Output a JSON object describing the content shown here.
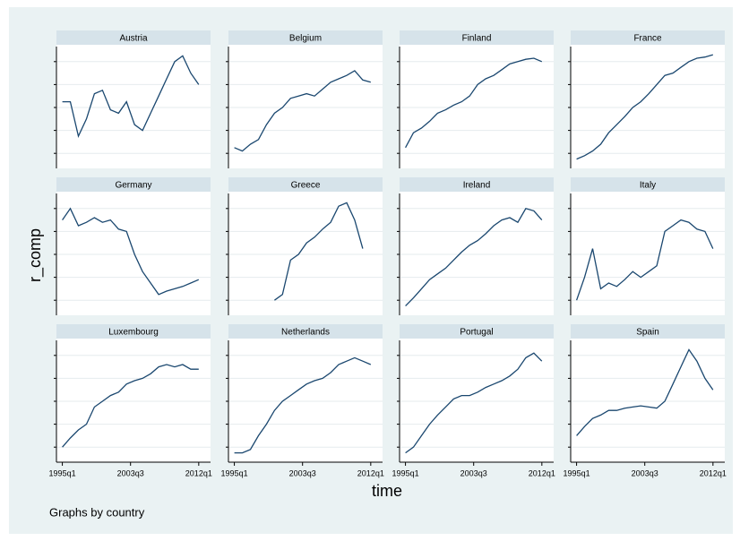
{
  "chart_data": {
    "type": "line",
    "ylabel": "r_comp",
    "xlabel": "time",
    "note": "Graphs by country",
    "x": [
      1995,
      1996,
      1997,
      1998,
      1999,
      2000,
      2001,
      2002,
      2003,
      2004,
      2005,
      2006,
      2007,
      2008,
      2009,
      2010,
      2011,
      2012
    ],
    "xlim": [
      1994.6,
      2012.8
    ],
    "xticks": [
      {
        "value": 1995,
        "label": "1995q1"
      },
      {
        "value": 2003.5,
        "label": "2003q3"
      },
      {
        "value": 2012,
        "label": "2012q1"
      }
    ],
    "ylim": [
      0,
      100
    ],
    "yticks": [
      10,
      30,
      50,
      70,
      90
    ],
    "grid": true,
    "series": [
      {
        "name": "Austria",
        "color": "#1a476f",
        "values": [
          55,
          55,
          25,
          40,
          62,
          65,
          48,
          45,
          55,
          35,
          30,
          45,
          60,
          75,
          90,
          95,
          80,
          70
        ]
      },
      {
        "name": "Belgium",
        "color": "#1a476f",
        "values": [
          15,
          12,
          18,
          22,
          35,
          45,
          50,
          58,
          60,
          62,
          60,
          66,
          72,
          75,
          78,
          82,
          74,
          72
        ]
      },
      {
        "name": "Finland",
        "color": "#1a476f",
        "values": [
          15,
          28,
          32,
          38,
          45,
          48,
          52,
          55,
          60,
          70,
          75,
          78,
          83,
          88,
          90,
          92,
          93,
          90
        ]
      },
      {
        "name": "France",
        "color": "#1a476f",
        "values": [
          5,
          8,
          12,
          18,
          28,
          35,
          42,
          50,
          55,
          62,
          70,
          78,
          80,
          85,
          90,
          93,
          94,
          96
        ]
      },
      {
        "name": "Germany",
        "color": "#1a476f",
        "values": [
          80,
          90,
          75,
          78,
          82,
          78,
          80,
          72,
          70,
          50,
          35,
          25,
          15,
          18,
          20,
          22,
          25,
          28
        ]
      },
      {
        "name": "Greece",
        "color": "#1a476f",
        "values": [
          null,
          null,
          null,
          null,
          null,
          10,
          15,
          45,
          50,
          60,
          65,
          72,
          78,
          92,
          95,
          80,
          55,
          null
        ]
      },
      {
        "name": "Ireland",
        "color": "#1a476f",
        "values": [
          5,
          12,
          20,
          28,
          33,
          38,
          45,
          52,
          58,
          62,
          68,
          75,
          80,
          82,
          78,
          90,
          88,
          80
        ]
      },
      {
        "name": "Italy",
        "color": "#1a476f",
        "values": [
          10,
          30,
          55,
          20,
          25,
          22,
          28,
          35,
          30,
          35,
          40,
          70,
          75,
          80,
          78,
          72,
          70,
          55
        ]
      },
      {
        "name": "Luxembourg",
        "color": "#1a476f",
        "values": [
          10,
          18,
          25,
          30,
          45,
          50,
          55,
          58,
          65,
          68,
          70,
          74,
          80,
          82,
          80,
          82,
          78,
          78
        ]
      },
      {
        "name": "Netherlands",
        "color": "#1a476f",
        "values": [
          5,
          5,
          8,
          20,
          30,
          42,
          50,
          55,
          60,
          65,
          68,
          70,
          75,
          82,
          85,
          88,
          85,
          82
        ]
      },
      {
        "name": "Portugal",
        "color": "#1a476f",
        "values": [
          5,
          10,
          20,
          30,
          38,
          45,
          52,
          55,
          55,
          58,
          62,
          65,
          68,
          72,
          78,
          88,
          92,
          85
        ]
      },
      {
        "name": "Spain",
        "color": "#1a476f",
        "values": [
          20,
          28,
          35,
          38,
          42,
          42,
          44,
          45,
          46,
          45,
          44,
          50,
          65,
          80,
          95,
          85,
          70,
          60
        ]
      }
    ]
  }
}
